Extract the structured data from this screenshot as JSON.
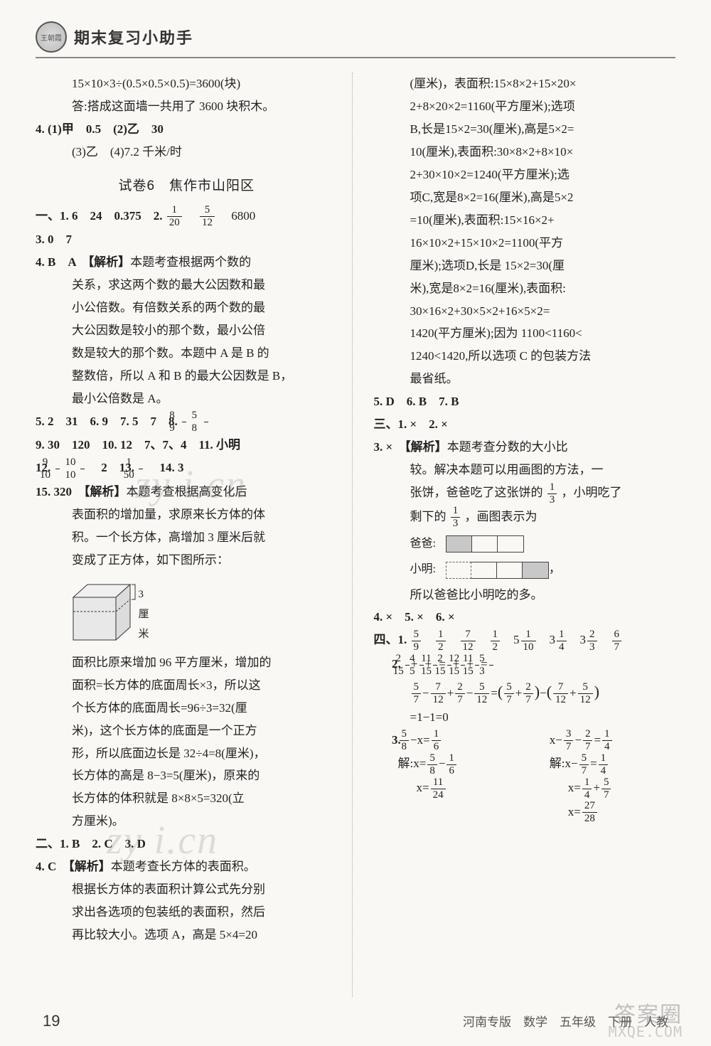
{
  "header": {
    "title": "期末复习小助手",
    "badge": "王朝霞"
  },
  "left": {
    "pre": [
      "15×10×3÷(0.5×0.5×0.5)=3600(块)",
      "答:搭成这面墙一共用了 3600 块积木。"
    ],
    "q4": {
      "l1": "4. (1)甲　0.5　(2)乙　30",
      "l2": "(3)乙　(4)7.2 千米/时"
    },
    "section_title": "试卷6　焦作市山阳区",
    "s1": {
      "q1_prefix": "一、1. 6　24　0.375　2. ",
      "f1": {
        "n": "1",
        "d": "20"
      },
      "f2": {
        "n": "5",
        "d": "12"
      },
      "q1_suffix": "　6800",
      "q3": "3. 0　7",
      "q4a": "4. B　A　",
      "q4a_tag": "【解析】",
      "q4a_body": [
        "本题考查根据两个数的",
        "关系，求这两个数的最大公因数和最",
        "小公倍数。有倍数关系的两个数的最",
        "大公因数是较小的那个数，最小公倍",
        "数是较大的那个数。本题中 A 是 B 的",
        "整数倍，所以 A 和 B 的最大公因数是 B，",
        "最小公倍数是 A。"
      ],
      "q5_8": {
        "pre": "5. 2　31　6. 9　7. 5　7　8. ",
        "f1": {
          "n": "8",
          "d": "9"
        },
        "f2": {
          "n": "5",
          "d": "8"
        }
      },
      "q9_11": "9. 30　120　10. 12　7、7、4　11. 小明",
      "q12_14": {
        "pre": "12. ",
        "f1": {
          "n": "9",
          "d": "10"
        },
        "m1": "　",
        "f2": {
          "n": "10",
          "d": "10"
        },
        "m2": "　2　13. ",
        "f3": {
          "n": "1",
          "d": "50"
        },
        "m3": "　14. 3"
      },
      "q15_head": "15. 320　",
      "q15_tag": "【解析】",
      "q15_body": [
        "本题考查根据高变化后",
        "表面积的增加量，求原来长方体的体",
        "积。一个长方体，高增加 3 厘米后就",
        "变成了正方体，如下图所示："
      ],
      "cube_label": "3 厘米",
      "q15_cont": [
        "面积比原来增加 96 平方厘米，增加的",
        "面积=长方体的底面周长×3，所以这",
        "个长方体的底面周长=96÷3=32(厘",
        "米)，这个长方体的底面是一个正方",
        "形，所以底面边长是 32÷4=8(厘米)，",
        "长方体的高是 8−3=5(厘米)，原来的",
        "长方体的体积就是 8×8×5=320(立",
        "方厘米)。"
      ]
    },
    "s2": {
      "q123": "二、1. B　2. C　3. D",
      "q4_head": "4. C　",
      "q4_tag": "【解析】",
      "q4_body": [
        "本题考查长方体的表面积。",
        "根据长方体的表面积计算公式先分别",
        "求出各选项的包装纸的表面积，然后",
        "再比较大小。选项 A，高是 5×4=20"
      ]
    }
  },
  "right": {
    "cont": [
      "(厘米)，表面积:15×8×2+15×20×",
      "2+8×20×2=1160(平方厘米);选项",
      "B,长是15×2=30(厘米),高是5×2=",
      "10(厘米),表面积:30×8×2+8×10×",
      "2+30×10×2=1240(平方厘米);选",
      "项C,宽是8×2=16(厘米),高是5×2",
      "=10(厘米),表面积:15×16×2+",
      "16×10×2+15×10×2=1100(平方",
      "厘米);选项D,长是 15×2=30(厘",
      "米),宽是8×2=16(厘米),表面积:",
      "30×16×2+30×5×2+16×5×2=",
      "1420(平方厘米);因为 1100<1160<",
      "1240<1420,所以选项 C 的包装方法",
      "最省纸。"
    ],
    "q567": "5. D　6. B　7. B",
    "s3": {
      "q12": "三、1. ×　2. ×",
      "q3_head": "3. ×　",
      "q3_tag": "【解析】",
      "q3_body1": "本题考查分数的大小比",
      "q3_body2": "较。解决本题可以用画图的方法，一",
      "q3_body3a": "张饼，爸爸吃了这张饼的",
      "f13a": {
        "n": "1",
        "d": "3"
      },
      "q3_body3b": "，小明吃了",
      "q3_body4a": "剩下的",
      "f13b": {
        "n": "1",
        "d": "3"
      },
      "q3_body4b": "，画图表示为",
      "dad": "爸爸:",
      "xm": "小明:",
      "concl": "所以爸爸比小明吃的多。",
      "q456": "4. ×　5. ×　6. ×"
    },
    "s4": {
      "q1": {
        "pre": "四、1. ",
        "fr": [
          {
            "n": "5",
            "d": "9"
          },
          {
            "n": "1",
            "d": "2"
          },
          {
            "n": "7",
            "d": "12"
          },
          {
            "n": "1",
            "d": "2"
          }
        ],
        "mix": [
          {
            "w": "5",
            "n": "1",
            "d": "10"
          },
          {
            "w": "3",
            "n": "1",
            "d": "4"
          },
          {
            "w": "3",
            "n": "2",
            "d": "3"
          }
        ],
        "last": {
          "n": "6",
          "d": "7"
        }
      },
      "q2": {
        "l1": [
          {
            "n": "2",
            "d": "15"
          },
          "+",
          {
            "n": "4",
            "d": "5"
          },
          "+",
          {
            "n": "11",
            "d": "15"
          },
          "=",
          {
            "n": "2",
            "d": "15"
          },
          "+",
          {
            "n": "12",
            "d": "15"
          },
          "+",
          {
            "n": "11",
            "d": "15"
          },
          "=",
          {
            "n": "5",
            "d": "3"
          }
        ],
        "l2": [
          {
            "n": "5",
            "d": "7"
          },
          "−",
          {
            "n": "7",
            "d": "12"
          },
          "+",
          {
            "n": "2",
            "d": "7"
          },
          "−",
          {
            "n": "5",
            "d": "12"
          },
          "=",
          "(",
          {
            "n": "5",
            "d": "7"
          },
          "+",
          {
            "n": "2",
            "d": "7"
          },
          ")",
          "−",
          "(",
          {
            "n": "7",
            "d": "12"
          },
          "+",
          {
            "n": "5",
            "d": "12"
          },
          ")"
        ],
        "l3": "=1−1=0"
      },
      "q3": {
        "left": {
          "l1": [
            {
              "n": "5",
              "d": "8"
            },
            "−x=",
            {
              "n": "1",
              "d": "6"
            }
          ],
          "l2": [
            "解:x=",
            {
              "n": "5",
              "d": "8"
            },
            "−",
            {
              "n": "1",
              "d": "6"
            }
          ],
          "l3": [
            "x=",
            {
              "n": "11",
              "d": "24"
            }
          ]
        },
        "right": {
          "l1": [
            "x−",
            {
              "n": "3",
              "d": "7"
            },
            "−",
            {
              "n": "2",
              "d": "7"
            },
            "=",
            {
              "n": "1",
              "d": "4"
            }
          ],
          "l2": [
            "解:x−",
            {
              "n": "5",
              "d": "7"
            },
            "=",
            {
              "n": "1",
              "d": "4"
            }
          ],
          "l3": [
            "x=",
            {
              "n": "1",
              "d": "4"
            },
            "+",
            {
              "n": "5",
              "d": "7"
            }
          ],
          "l4": [
            "x=",
            {
              "n": "27",
              "d": "28"
            }
          ]
        }
      }
    }
  },
  "footer": {
    "page": "19",
    "right": "河南专版　数学　五年级　下册　人教"
  },
  "watermarks": {
    "wm": "zy i.cn",
    "brand": "答案圈",
    "url": "MXQE.COM"
  }
}
